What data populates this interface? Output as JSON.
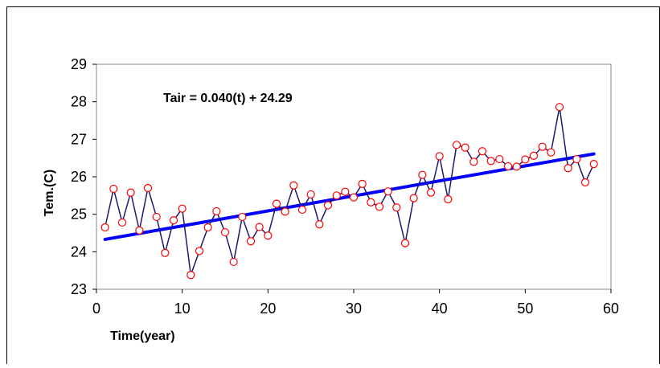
{
  "chart_data": {
    "type": "line",
    "title": "",
    "xlabel": "Time(year)",
    "ylabel": "Tem.(C)",
    "xlim": [
      0,
      60
    ],
    "ylim": [
      23,
      29
    ],
    "xticks": [
      0,
      10,
      20,
      30,
      40,
      50,
      60
    ],
    "yticks": [
      23,
      24,
      25,
      26,
      27,
      28,
      29
    ],
    "grid": false,
    "legend": "none",
    "annotation": "Tair = 0.040(t) + 24.29",
    "colors": {
      "series": "#1a1a6e",
      "marker_edge": "#ff0000",
      "marker_fill": "#ffffff",
      "trend": "#0000ff"
    },
    "series": [
      {
        "x": [
          1,
          2,
          3,
          4,
          5,
          6,
          7,
          8,
          9,
          10,
          11,
          12,
          13,
          14,
          15,
          16,
          17,
          18,
          19,
          20,
          21,
          22,
          23,
          24,
          25,
          26,
          27,
          28,
          29,
          30,
          31,
          32,
          33,
          34,
          35,
          36,
          37,
          38,
          39,
          40,
          41,
          42,
          43,
          44,
          45,
          46,
          47,
          48,
          49,
          50,
          51,
          52,
          53,
          54,
          55,
          56,
          57,
          58
        ],
        "values": [
          24.65,
          25.68,
          24.78,
          25.58,
          24.57,
          25.7,
          24.93,
          23.97,
          24.84,
          25.15,
          23.38,
          24.02,
          24.65,
          25.08,
          24.52,
          23.73,
          24.93,
          24.28,
          24.66,
          24.43,
          25.28,
          25.07,
          25.77,
          25.12,
          25.53,
          24.73,
          25.24,
          25.5,
          25.6,
          25.45,
          25.81,
          25.32,
          25.2,
          25.61,
          25.18,
          24.23,
          25.43,
          26.05,
          25.58,
          26.55,
          25.4,
          26.85,
          26.78,
          26.4,
          26.68,
          26.42,
          26.47,
          26.28,
          26.27,
          26.46,
          26.56,
          26.8,
          26.65,
          27.86,
          26.23,
          26.47,
          25.85,
          26.34
        ]
      }
    ],
    "trendline": {
      "name": "",
      "slope": 0.04,
      "intercept": 24.29,
      "x_range": [
        1,
        58
      ]
    }
  }
}
